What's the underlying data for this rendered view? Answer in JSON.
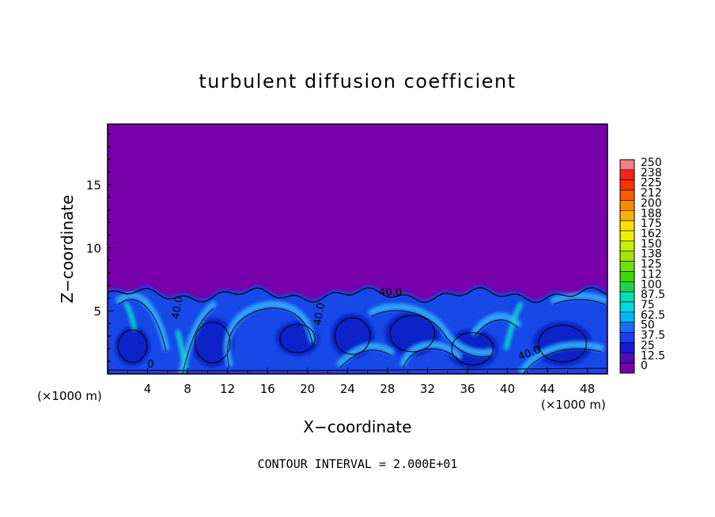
{
  "chart_data": {
    "type": "heatmap",
    "title": "turbulent diffusion coefficient",
    "xlabel": "X−coordinate",
    "ylabel": "Z−coordinate",
    "x_unit_left": "(×1000 m)",
    "x_unit_right": "(×1000 m)",
    "footer": "CONTOUR INTERVAL = 2.000E+01",
    "xlim": [
      0,
      50
    ],
    "ylim": [
      0,
      19.8
    ],
    "x_ticks": [
      "4",
      "8",
      "12",
      "16",
      "20",
      "24",
      "28",
      "32",
      "36",
      "40",
      "44",
      "48"
    ],
    "x_tick_values": [
      4,
      8,
      12,
      16,
      20,
      24,
      28,
      32,
      36,
      40,
      44,
      48
    ],
    "y_ticks": [
      "5",
      "10",
      "15"
    ],
    "y_tick_values": [
      5,
      10,
      15
    ],
    "contour_labels": [
      {
        "text": "40.0",
        "x": 7.3,
        "z": 5.2,
        "rot": -80
      },
      {
        "text": "40.0",
        "x": 21.5,
        "z": 4.7,
        "rot": -80
      },
      {
        "text": "40.0",
        "x": 28.3,
        "z": 6.2,
        "rot": 0
      },
      {
        "text": "40.0",
        "x": 42.3,
        "z": 1.4,
        "rot": -20
      },
      {
        "text": "0",
        "x": 4.3,
        "z": 0.5,
        "rot": 0
      }
    ],
    "colorbar": {
      "labels": [
        "250",
        "238",
        "225",
        "212",
        "200",
        "188",
        "175",
        "162",
        "150",
        "138",
        "125",
        "112",
        "100",
        "87.5",
        "75",
        "62.5",
        "50",
        "37.5",
        "25",
        "12.5",
        "0"
      ],
      "colors": [
        "#f08080",
        "#ff2020",
        "#ff3000",
        "#ff5a00",
        "#ff8a00",
        "#ffb000",
        "#ffe000",
        "#f0f000",
        "#c8f000",
        "#a0e600",
        "#70e000",
        "#40d800",
        "#20d050",
        "#00e0b0",
        "#00d8e8",
        "#00b4ff",
        "#1a6cff",
        "#1a3cff",
        "#1818d8",
        "#4a10b8",
        "#7800a8"
      ]
    },
    "background_value_color": "#7700aa",
    "turbulent_layer_top_km": 6.8
  }
}
